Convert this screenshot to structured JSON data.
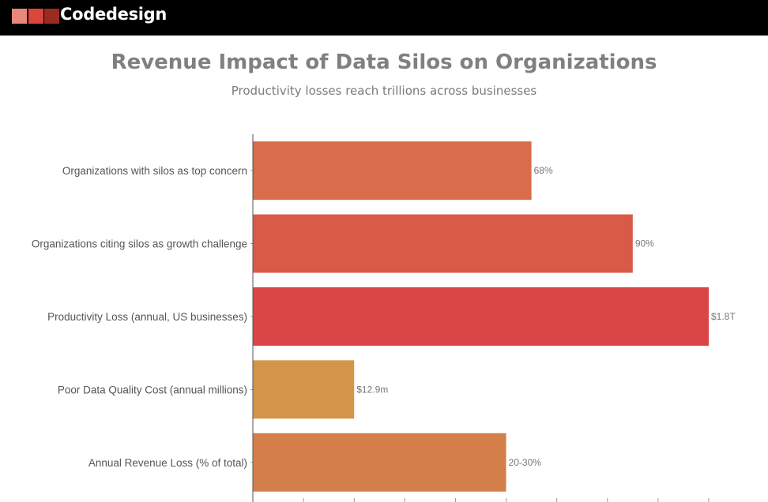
{
  "brand": {
    "name": "Codedesign",
    "logo_colors": [
      "#e8877a",
      "#d9463b",
      "#9b2a22"
    ]
  },
  "chart_data": {
    "type": "bar",
    "orientation": "horizontal",
    "title": "Revenue Impact of Data Silos on Organizations",
    "subtitle": "Productivity losses reach trillions across businesses",
    "xlabel": "",
    "ylabel": "",
    "xlim": [
      0,
      9
    ],
    "categories": [
      "Organizations with silos as top concern",
      "Organizations citing silos as growth challenge",
      "Productivity Loss (annual, US businesses)",
      "Poor Data Quality Cost (annual millions)",
      "Annual Revenue Loss (% of total)"
    ],
    "values": [
      5.5,
      7.5,
      9.0,
      2.0,
      5.0
    ],
    "value_labels": [
      "68%",
      "90%",
      "$1.8T",
      "$12.9m",
      "20-30%"
    ],
    "colors": [
      "#d96c4a",
      "#d95b47",
      "#da4646",
      "#d4954b",
      "#d47f4a"
    ],
    "tick_count": 10,
    "grid": false,
    "legend": "none"
  }
}
